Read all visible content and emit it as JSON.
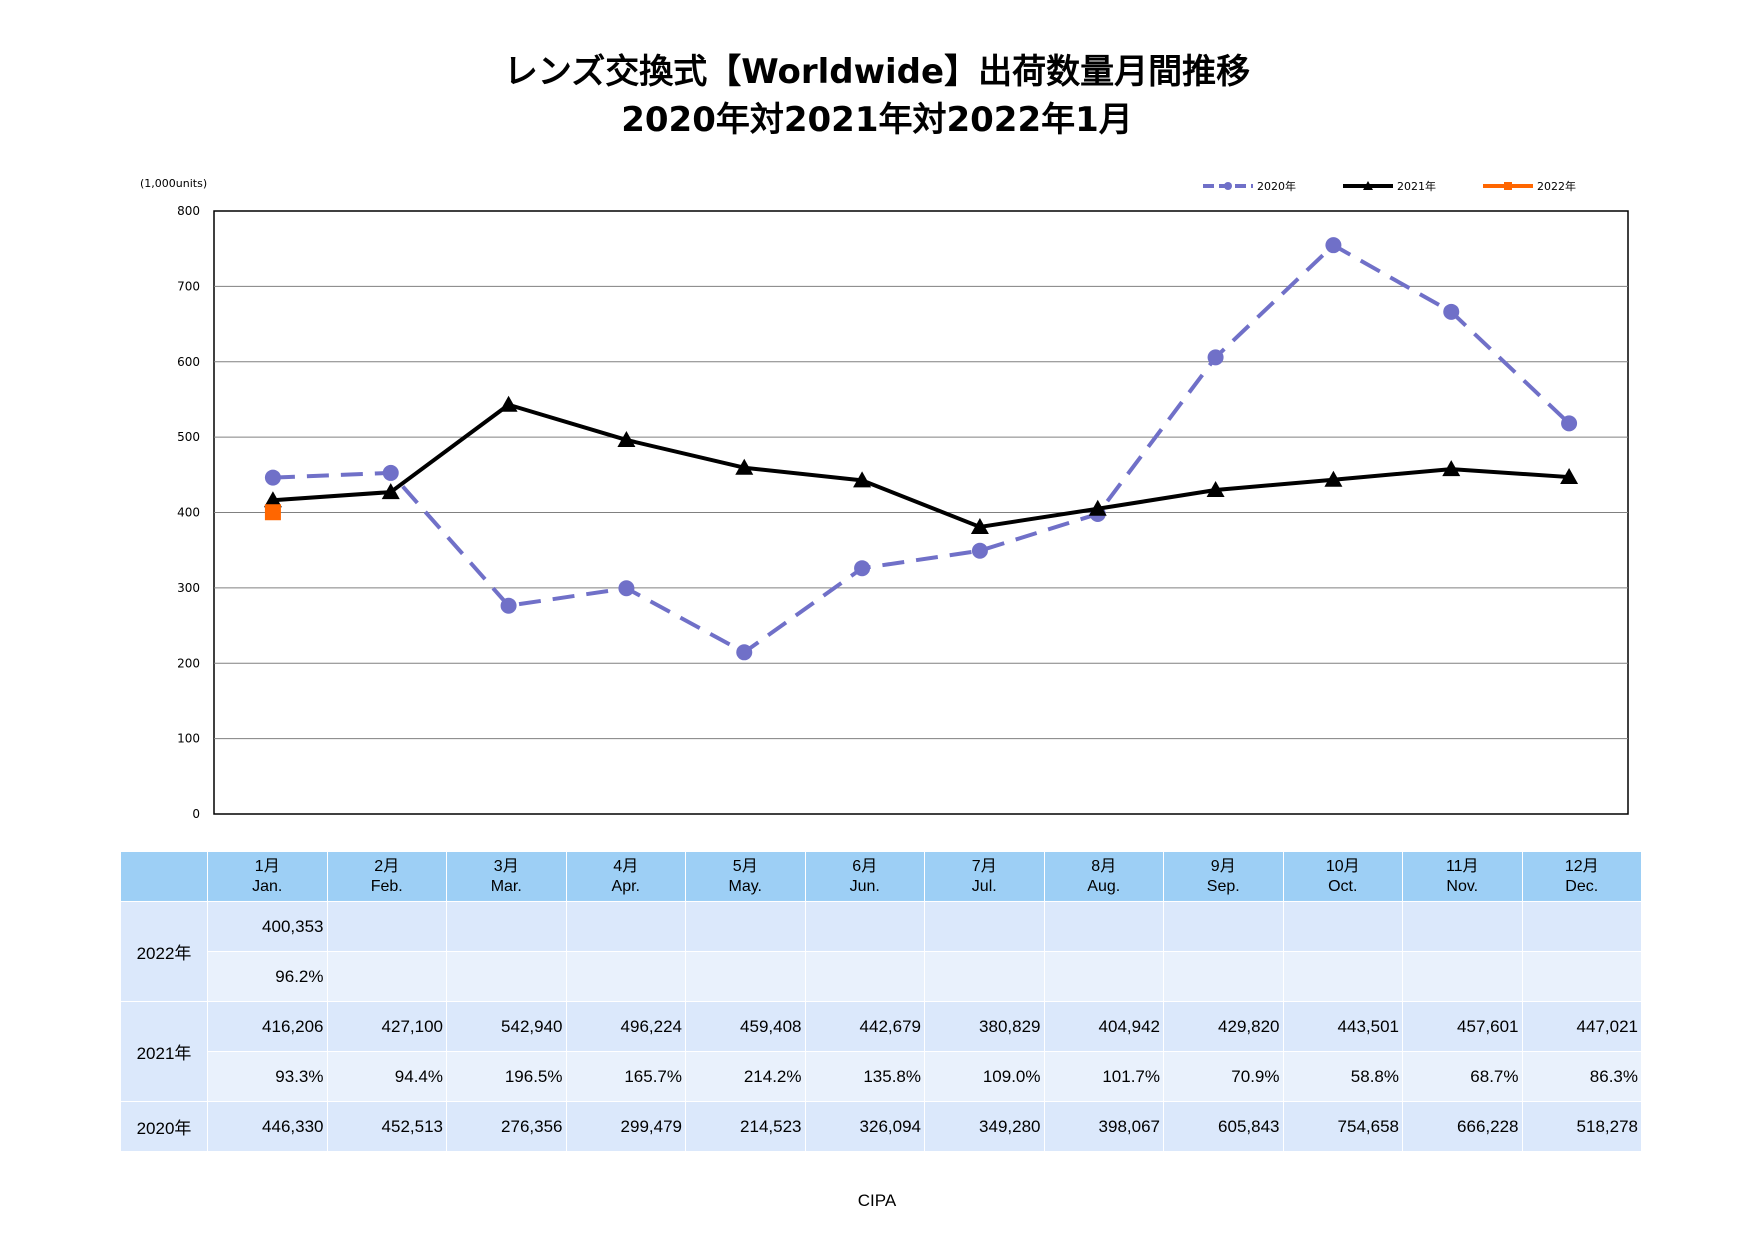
{
  "title_line1": "レンズ交換式【Worldwide】出荷数量月間推移",
  "title_line2": "2020年対2021年対2022年1月",
  "unit_label": "(1,000units)",
  "source": "CIPA",
  "months": [
    {
      "jp": "1月",
      "en": "Jan."
    },
    {
      "jp": "2月",
      "en": "Feb."
    },
    {
      "jp": "3月",
      "en": "Mar."
    },
    {
      "jp": "4月",
      "en": "Apr."
    },
    {
      "jp": "5月",
      "en": "May."
    },
    {
      "jp": "6月",
      "en": "Jun."
    },
    {
      "jp": "7月",
      "en": "Jul."
    },
    {
      "jp": "8月",
      "en": "Aug."
    },
    {
      "jp": "9月",
      "en": "Sep."
    },
    {
      "jp": "10月",
      "en": "Oct."
    },
    {
      "jp": "11月",
      "en": "Nov."
    },
    {
      "jp": "12月",
      "en": "Dec."
    }
  ],
  "table": {
    "row_2022_label": "2022年",
    "row_2021_label": "2021年",
    "row_2020_label": "2020年",
    "r2022_values": [
      "400,353",
      "",
      "",
      "",
      "",
      "",
      "",
      "",
      "",
      "",
      "",
      ""
    ],
    "r2022_pct": [
      "96.2%",
      "",
      "",
      "",
      "",
      "",
      "",
      "",
      "",
      "",
      "",
      ""
    ],
    "r2021_values": [
      "416,206",
      "427,100",
      "542,940",
      "496,224",
      "459,408",
      "442,679",
      "380,829",
      "404,942",
      "429,820",
      "443,501",
      "457,601",
      "447,021"
    ],
    "r2021_pct": [
      "93.3%",
      "94.4%",
      "196.5%",
      "165.7%",
      "214.2%",
      "135.8%",
      "109.0%",
      "101.7%",
      "70.9%",
      "58.8%",
      "68.7%",
      "86.3%"
    ],
    "r2020_values": [
      "446,330",
      "452,513",
      "276,356",
      "299,479",
      "214,523",
      "326,094",
      "349,280",
      "398,067",
      "605,843",
      "754,658",
      "666,228",
      "518,278"
    ]
  },
  "chart_data": {
    "type": "line",
    "ylim": [
      0,
      800
    ],
    "yticks": [
      "0",
      "100",
      "200",
      "300",
      "400",
      "500",
      "600",
      "700",
      "800"
    ],
    "grid": true,
    "legend_position": "top-right",
    "series": [
      {
        "name": "2020年",
        "color": "#7070c8",
        "style": "dashed",
        "marker": "circle",
        "values": [
          446.33,
          452.513,
          276.356,
          299.479,
          214.523,
          326.094,
          349.28,
          398.067,
          605.843,
          754.658,
          666.228,
          518.278
        ]
      },
      {
        "name": "2021年",
        "color": "#000000",
        "style": "solid",
        "marker": "triangle",
        "values": [
          416.206,
          427.1,
          542.94,
          496.224,
          459.408,
          442.679,
          380.829,
          404.942,
          429.82,
          443.501,
          457.601,
          447.021
        ]
      },
      {
        "name": "2022年",
        "color": "#ff6600",
        "style": "solid",
        "marker": "square",
        "values": [
          400.353
        ]
      }
    ]
  }
}
